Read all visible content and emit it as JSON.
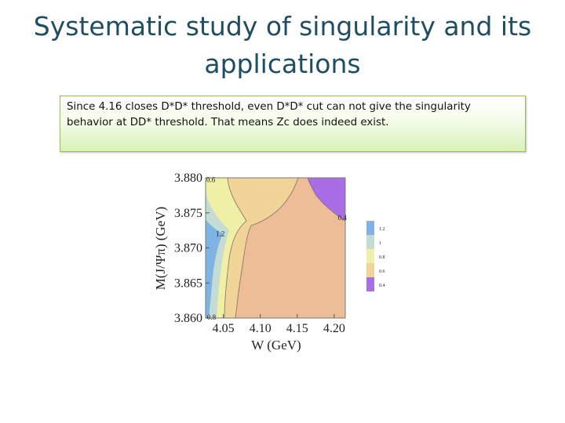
{
  "slide": {
    "title": "Systematic study of singularity and its applications",
    "note": "Since 4.16 closes D*D* threshold, even D*D* cut can not give the singularity behavior at DD* threshold. That means Zc does indeed exist."
  },
  "chart_data": {
    "type": "contour",
    "xlabel": "W (GeV)",
    "ylabel": "M(J/Ψπ) (GeV)",
    "x_ticks": [
      "4.05",
      "4.10",
      "4.15",
      "4.20"
    ],
    "y_ticks": [
      "3.860",
      "3.865",
      "3.870",
      "3.875",
      "3.880"
    ],
    "xlim": [
      4.026,
      4.215
    ],
    "ylim": [
      3.86,
      3.88
    ],
    "contour_labels": [
      {
        "text": "0.6",
        "x": 4.027,
        "y": 3.8797
      },
      {
        "text": "0.4",
        "x": 4.205,
        "y": 3.8743
      },
      {
        "text": "1.2",
        "x": 4.04,
        "y": 3.872
      },
      {
        "text": "0.8",
        "x": 4.028,
        "y": 3.8601
      }
    ],
    "legend": [
      {
        "label": "1.2",
        "color": "#7fb3e3"
      },
      {
        "label": "1",
        "color": "#c3ddd6"
      },
      {
        "label": "0.8",
        "color": "#eff0a6"
      },
      {
        "label": "0.6",
        "color": "#f1d497"
      },
      {
        "label": "0.4",
        "color": "#a96de5"
      }
    ],
    "colors": {
      "level_1_2": "#7fb3e3",
      "level_1": "#c3ddd6",
      "level_0_8": "#eff0a6",
      "level_0_6": "#f1d497",
      "level_0_5": "#edbd98",
      "level_0_4": "#a96de5"
    }
  }
}
